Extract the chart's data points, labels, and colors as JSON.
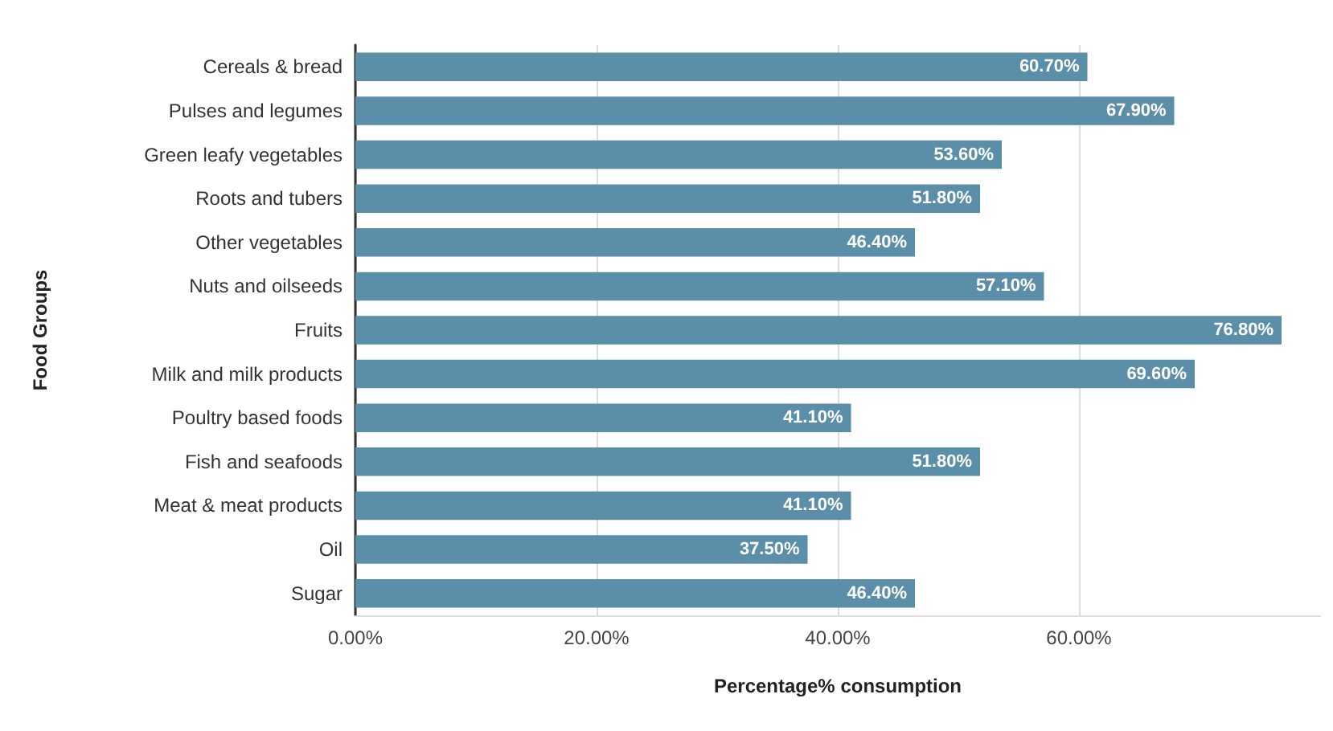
{
  "chart_data": {
    "type": "bar",
    "orientation": "horizontal",
    "xlabel": "Percentage% consumption",
    "ylabel": "Food Groups",
    "categories": [
      "Cereals & bread",
      "Pulses and legumes",
      "Green leafy vegetables",
      "Roots and tubers",
      "Other vegetables",
      "Nuts and oilseeds",
      "Fruits",
      "Milk and milk products",
      "Poultry based foods",
      "Fish and seafoods",
      "Meat & meat products",
      "Oil",
      "Sugar"
    ],
    "values": [
      60.7,
      67.9,
      53.6,
      51.8,
      46.4,
      57.1,
      76.8,
      69.6,
      41.1,
      51.8,
      41.1,
      37.5,
      46.4
    ],
    "value_labels": [
      "60.70%",
      "67.90%",
      "53.60%",
      "51.80%",
      "46.40%",
      "57.10%",
      "76.80%",
      "69.60%",
      "41.10%",
      "51.80%",
      "41.10%",
      "37.50%",
      "46.40%"
    ],
    "color": "#5b8ea8",
    "xlim": [
      0,
      80
    ],
    "xticks": [
      {
        "value": 0,
        "label": "0.00%"
      },
      {
        "value": 20,
        "label": "20.00%"
      },
      {
        "value": 40,
        "label": "40.00%"
      },
      {
        "value": 60,
        "label": "60.00%"
      }
    ],
    "grid": "x"
  }
}
